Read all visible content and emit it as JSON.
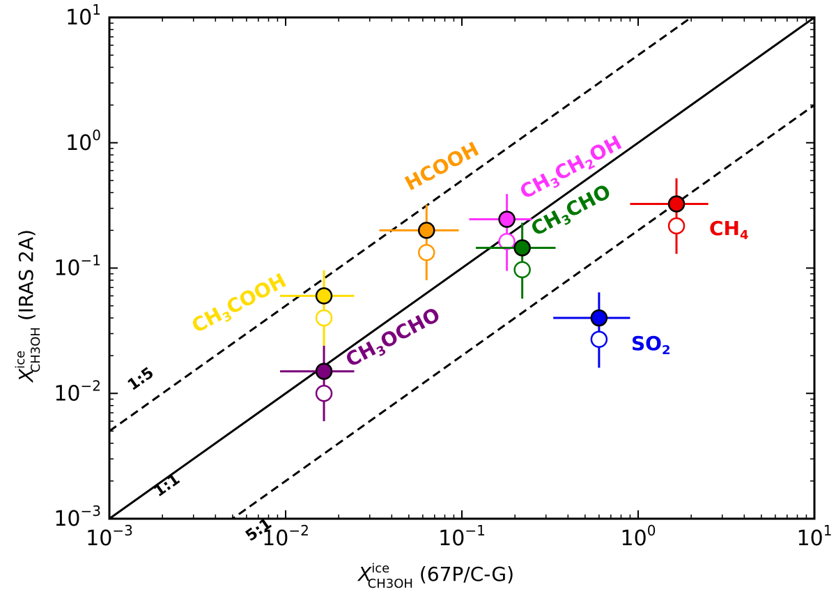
{
  "chart_data": {
    "type": "scatter",
    "xscale": "log",
    "yscale": "log",
    "xlim": [
      0.001,
      10
    ],
    "ylim": [
      0.001,
      10
    ],
    "xlabel": {
      "symbol": "X",
      "superscript": "ice",
      "subscript": "CH3OH",
      "suffix": "(67P/C-G)"
    },
    "ylabel": {
      "symbol": "X",
      "superscript": "ice",
      "subscript": "CH3OH",
      "suffix": "(IRAS 2A)"
    },
    "xticks": [
      {
        "value": 0.001,
        "base": "10",
        "exp": "−3"
      },
      {
        "value": 0.01,
        "base": "10",
        "exp": "−2"
      },
      {
        "value": 0.1,
        "base": "10",
        "exp": "−1"
      },
      {
        "value": 1,
        "base": "10",
        "exp": "0"
      },
      {
        "value": 10,
        "base": "10",
        "exp": "1"
      }
    ],
    "yticks": [
      {
        "value": 0.001,
        "base": "10",
        "exp": "−3"
      },
      {
        "value": 0.01,
        "base": "10",
        "exp": "−2"
      },
      {
        "value": 0.1,
        "base": "10",
        "exp": "−1"
      },
      {
        "value": 1,
        "base": "10",
        "exp": "0"
      },
      {
        "value": 10,
        "base": "10",
        "exp": "1"
      }
    ],
    "ratio_lines": [
      {
        "label": "1:5",
        "factor": 5,
        "style": "dashed"
      },
      {
        "label": "1:1",
        "factor": 1,
        "style": "solid"
      },
      {
        "label": "5:1",
        "factor": 0.2,
        "style": "dashed"
      }
    ],
    "series": [
      {
        "name": "HCOOH",
        "label_parts": [
          [
            "HCOOH",
            ""
          ]
        ],
        "color": "#FF9900",
        "x": 0.063,
        "x_err": [
          0.034,
          0.096
        ],
        "y_filled": 0.2,
        "y_open": 0.133,
        "y_err": [
          0.08,
          0.32
        ]
      },
      {
        "name": "CH3CH2OH",
        "label_parts": [
          [
            "CH",
            ""
          ],
          [
            "3",
            "sub"
          ],
          [
            "CH",
            ""
          ],
          [
            "2",
            "sub"
          ],
          [
            "OH",
            ""
          ]
        ],
        "color": "#FF33FF",
        "x": 0.18,
        "x_err": [
          0.11,
          0.25
        ],
        "y_filled": 0.245,
        "y_open": 0.163,
        "y_err": [
          0.095,
          0.39
        ]
      },
      {
        "name": "CH3CHO",
        "label_parts": [
          [
            "CH",
            ""
          ],
          [
            "3",
            "sub"
          ],
          [
            "CHO",
            ""
          ]
        ],
        "color": "#007700",
        "x": 0.22,
        "x_err": [
          0.12,
          0.34
        ],
        "y_filled": 0.145,
        "y_open": 0.097,
        "y_err": [
          0.057,
          0.23
        ]
      },
      {
        "name": "CH4",
        "label_parts": [
          [
            "CH",
            ""
          ],
          [
            "4",
            "sub"
          ]
        ],
        "color": "#EE0000",
        "x": 1.65,
        "x_err": [
          0.9,
          2.5
        ],
        "y_filled": 0.325,
        "y_open": 0.217,
        "y_err": [
          0.13,
          0.52
        ]
      },
      {
        "name": "CH3COOH",
        "label_parts": [
          [
            "CH",
            ""
          ],
          [
            "3",
            "sub"
          ],
          [
            "COOH",
            ""
          ]
        ],
        "color": "#FFDD00",
        "x": 0.0165,
        "x_err": [
          0.0093,
          0.0245
        ],
        "y_filled": 0.06,
        "y_open": 0.04,
        "y_err": [
          0.024,
          0.096
        ]
      },
      {
        "name": "CH3OCHO",
        "label_parts": [
          [
            "CH",
            ""
          ],
          [
            "3",
            "sub"
          ],
          [
            "OCHO",
            ""
          ]
        ],
        "color": "#7B007B",
        "x": 0.0165,
        "x_err": [
          0.0093,
          0.0245
        ],
        "y_filled": 0.015,
        "y_open": 0.01,
        "y_err": [
          0.006,
          0.024
        ]
      },
      {
        "name": "SO2",
        "label_parts": [
          [
            "SO",
            ""
          ],
          [
            "2",
            "sub"
          ]
        ],
        "color": "#0000EE",
        "x": 0.6,
        "x_err": [
          0.33,
          0.9
        ],
        "y_filled": 0.04,
        "y_open": 0.027,
        "y_err": [
          0.016,
          0.064
        ]
      }
    ]
  }
}
